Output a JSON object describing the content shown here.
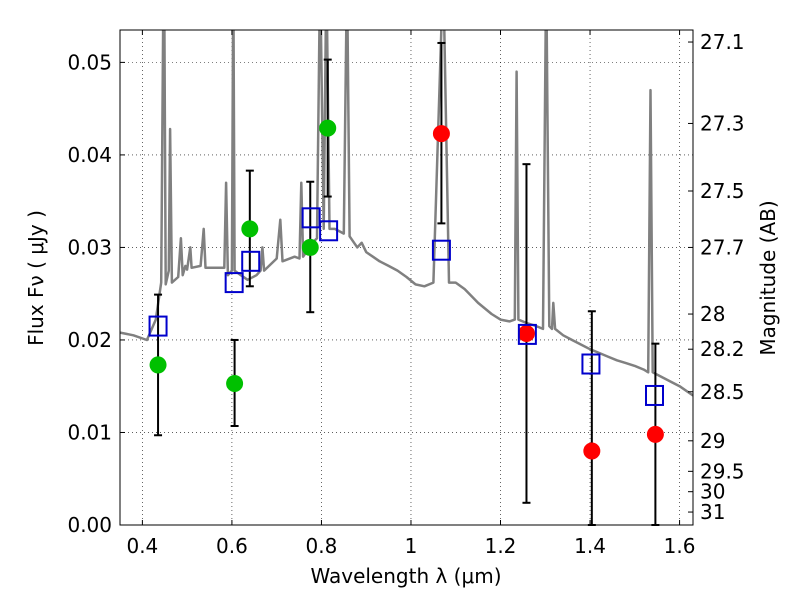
{
  "chart_data": {
    "type": "scatter",
    "xlabel": "Wavelength  λ (μm)",
    "ylabel": "Flux  Fν ( μJy )",
    "y2label": "Magnitude (AB)",
    "xlim": [
      0.35,
      1.63
    ],
    "ylim": [
      0.0,
      0.0535
    ],
    "grid": true,
    "x_ticks": [
      0.4,
      0.6,
      0.8,
      1.0,
      1.2,
      1.4,
      1.6
    ],
    "x_tick_labels": [
      "0.4",
      "0.6",
      "0.8",
      "1",
      "1.2",
      "1.4",
      "1.6"
    ],
    "y_ticks": [
      0.0,
      0.01,
      0.02,
      0.03,
      0.04,
      0.05
    ],
    "y_tick_labels": [
      "0.00",
      "0.01",
      "0.02",
      "0.03",
      "0.04",
      "0.05"
    ],
    "y2_ticks": [
      {
        "label": "27.1",
        "flux": 0.0522
      },
      {
        "label": "27.3",
        "flux": 0.0434
      },
      {
        "label": "27.5",
        "flux": 0.0361
      },
      {
        "label": "27.7",
        "flux": 0.03
      },
      {
        "label": "28",
        "flux": 0.0228
      },
      {
        "label": "28.2",
        "flux": 0.019
      },
      {
        "label": "28.5",
        "flux": 0.0144
      },
      {
        "label": "29",
        "flux": 0.0091
      },
      {
        "label": "29.5",
        "flux": 0.0058
      },
      {
        "label": "30",
        "flux": 0.0036
      },
      {
        "label": "31",
        "flux": 0.0014
      }
    ],
    "series": [
      {
        "color": "#00c000",
        "marker": "circle",
        "points": [
          {
            "x": 0.435,
            "y": 0.0173
          },
          {
            "x": 0.606,
            "y": 0.0153
          },
          {
            "x": 0.64,
            "y": 0.032
          },
          {
            "x": 0.775,
            "y": 0.03
          },
          {
            "x": 0.814,
            "y": 0.0429
          }
        ]
      },
      {
        "color": "#ff0000",
        "marker": "circle",
        "points": [
          {
            "x": 1.068,
            "y": 0.0423
          },
          {
            "x": 1.258,
            "y": 0.0207
          },
          {
            "x": 1.404,
            "y": 0.008
          },
          {
            "x": 1.546,
            "y": 0.0098
          }
        ]
      },
      {
        "color": "#0000cc",
        "marker": "open-square",
        "points": [
          {
            "x": 0.435,
            "y": 0.0215
          },
          {
            "x": 0.605,
            "y": 0.0262
          },
          {
            "x": 0.642,
            "y": 0.0285
          },
          {
            "x": 0.777,
            "y": 0.0332
          },
          {
            "x": 0.816,
            "y": 0.0318
          },
          {
            "x": 1.068,
            "y": 0.0297
          },
          {
            "x": 1.26,
            "y": 0.0206
          },
          {
            "x": 1.402,
            "y": 0.0174
          },
          {
            "x": 1.544,
            "y": 0.014
          }
        ]
      },
      {
        "color": "#808080",
        "marker": "line",
        "points": [
          {
            "x": 0.35,
            "y": 0.0208
          },
          {
            "x": 0.38,
            "y": 0.0205
          },
          {
            "x": 0.41,
            "y": 0.02
          },
          {
            "x": 0.43,
            "y": 0.0222
          },
          {
            "x": 0.442,
            "y": 0.0262
          },
          {
            "x": 0.448,
            "y": 0.065
          },
          {
            "x": 0.452,
            "y": 0.026
          },
          {
            "x": 0.459,
            "y": 0.0275
          },
          {
            "x": 0.462,
            "y": 0.0428
          },
          {
            "x": 0.466,
            "y": 0.0262
          },
          {
            "x": 0.48,
            "y": 0.0268
          },
          {
            "x": 0.486,
            "y": 0.031
          },
          {
            "x": 0.49,
            "y": 0.027
          },
          {
            "x": 0.496,
            "y": 0.028
          },
          {
            "x": 0.5,
            "y": 0.0276
          },
          {
            "x": 0.507,
            "y": 0.03
          },
          {
            "x": 0.51,
            "y": 0.0278
          },
          {
            "x": 0.53,
            "y": 0.028
          },
          {
            "x": 0.537,
            "y": 0.032
          },
          {
            "x": 0.541,
            "y": 0.0278
          },
          {
            "x": 0.57,
            "y": 0.0278
          },
          {
            "x": 0.583,
            "y": 0.0278
          },
          {
            "x": 0.587,
            "y": 0.037
          },
          {
            "x": 0.591,
            "y": 0.027
          },
          {
            "x": 0.6,
            "y": 0.0275
          },
          {
            "x": 0.603,
            "y": 0.06
          },
          {
            "x": 0.606,
            "y": 0.0275
          },
          {
            "x": 0.62,
            "y": 0.027
          },
          {
            "x": 0.635,
            "y": 0.0265
          },
          {
            "x": 0.655,
            "y": 0.027
          },
          {
            "x": 0.664,
            "y": 0.0275
          },
          {
            "x": 0.668,
            "y": 0.03
          },
          {
            "x": 0.672,
            "y": 0.0275
          },
          {
            "x": 0.7,
            "y": 0.0288
          },
          {
            "x": 0.708,
            "y": 0.033
          },
          {
            "x": 0.713,
            "y": 0.0285
          },
          {
            "x": 0.74,
            "y": 0.029
          },
          {
            "x": 0.751,
            "y": 0.0288
          },
          {
            "x": 0.755,
            "y": 0.037
          },
          {
            "x": 0.759,
            "y": 0.029
          },
          {
            "x": 0.78,
            "y": 0.0305
          },
          {
            "x": 0.79,
            "y": 0.031
          },
          {
            "x": 0.797,
            "y": 0.06
          },
          {
            "x": 0.805,
            "y": 0.032
          },
          {
            "x": 0.811,
            "y": 0.06
          },
          {
            "x": 0.818,
            "y": 0.032
          },
          {
            "x": 0.83,
            "y": 0.032
          },
          {
            "x": 0.85,
            "y": 0.0315
          },
          {
            "x": 0.857,
            "y": 0.06
          },
          {
            "x": 0.863,
            "y": 0.0312
          },
          {
            "x": 0.88,
            "y": 0.03
          },
          {
            "x": 0.89,
            "y": 0.0305
          },
          {
            "x": 0.9,
            "y": 0.0295
          },
          {
            "x": 0.915,
            "y": 0.029
          },
          {
            "x": 0.93,
            "y": 0.0285
          },
          {
            "x": 0.95,
            "y": 0.028
          },
          {
            "x": 0.97,
            "y": 0.0275
          },
          {
            "x": 0.99,
            "y": 0.0268
          },
          {
            "x": 1.01,
            "y": 0.026
          },
          {
            "x": 1.03,
            "y": 0.0258
          },
          {
            "x": 1.05,
            "y": 0.0262
          },
          {
            "x": 1.072,
            "y": 0.06
          },
          {
            "x": 1.085,
            "y": 0.0262
          },
          {
            "x": 1.1,
            "y": 0.0262
          },
          {
            "x": 1.12,
            "y": 0.0255
          },
          {
            "x": 1.15,
            "y": 0.024
          },
          {
            "x": 1.18,
            "y": 0.0228
          },
          {
            "x": 1.2,
            "y": 0.0222
          },
          {
            "x": 1.22,
            "y": 0.022
          },
          {
            "x": 1.232,
            "y": 0.0222
          },
          {
            "x": 1.236,
            "y": 0.049
          },
          {
            "x": 1.24,
            "y": 0.0222
          },
          {
            "x": 1.26,
            "y": 0.0218
          },
          {
            "x": 1.28,
            "y": 0.0215
          },
          {
            "x": 1.295,
            "y": 0.0212
          },
          {
            "x": 1.302,
            "y": 0.06
          },
          {
            "x": 1.309,
            "y": 0.0215
          },
          {
            "x": 1.315,
            "y": 0.0212
          },
          {
            "x": 1.318,
            "y": 0.024
          },
          {
            "x": 1.322,
            "y": 0.0212
          },
          {
            "x": 1.34,
            "y": 0.0205
          },
          {
            "x": 1.36,
            "y": 0.02
          },
          {
            "x": 1.38,
            "y": 0.0195
          },
          {
            "x": 1.4,
            "y": 0.019
          },
          {
            "x": 1.42,
            "y": 0.0186
          },
          {
            "x": 1.44,
            "y": 0.0182
          },
          {
            "x": 1.46,
            "y": 0.0178
          },
          {
            "x": 1.48,
            "y": 0.0175
          },
          {
            "x": 1.5,
            "y": 0.0172
          },
          {
            "x": 1.52,
            "y": 0.0168
          },
          {
            "x": 1.53,
            "y": 0.0165
          },
          {
            "x": 1.535,
            "y": 0.047
          },
          {
            "x": 1.54,
            "y": 0.0165
          },
          {
            "x": 1.56,
            "y": 0.016
          },
          {
            "x": 1.58,
            "y": 0.0155
          },
          {
            "x": 1.6,
            "y": 0.015
          },
          {
            "x": 1.63,
            "y": 0.014
          }
        ]
      }
    ],
    "error_bars": [
      {
        "x": 0.435,
        "y_low": 0.0097,
        "y_high": 0.0249
      },
      {
        "x": 0.606,
        "y_low": 0.0107,
        "y_high": 0.02
      },
      {
        "x": 0.64,
        "y_low": 0.0258,
        "y_high": 0.0383
      },
      {
        "x": 0.775,
        "y_low": 0.023,
        "y_high": 0.0371
      },
      {
        "x": 0.814,
        "y_low": 0.0355,
        "y_high": 0.0503
      },
      {
        "x": 1.068,
        "y_low": 0.0326,
        "y_high": 0.0521
      },
      {
        "x": 1.258,
        "y_low": 0.0024,
        "y_high": 0.039
      },
      {
        "x": 1.404,
        "y_low": 0.0,
        "y_high": 0.0231
      },
      {
        "x": 1.546,
        "y_low": 0.0,
        "y_high": 0.0196
      }
    ]
  }
}
